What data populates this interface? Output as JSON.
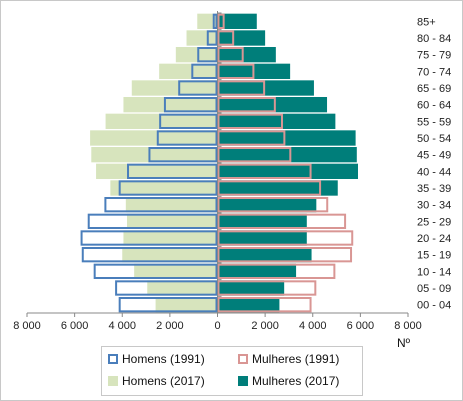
{
  "chart_data": {
    "type": "bar",
    "orientation": "horizontal-pyramid",
    "categories": [
      "00 - 04",
      "05 - 09",
      "10 - 14",
      "15 - 19",
      "20 - 24",
      "25 - 29",
      "30 - 34",
      "35 - 39",
      "40 - 44",
      "45 - 49",
      "50 - 54",
      "55 - 59",
      "60 - 64",
      "65 - 69",
      "70 - 74",
      "75 - 79",
      "80 - 84",
      "85+"
    ],
    "series": [
      {
        "name": "Homens (1991)",
        "side": "left",
        "style": "outline",
        "color": "#4a7ebb",
        "values": [
          4150,
          4300,
          5200,
          5700,
          5750,
          5450,
          4750,
          4150,
          3800,
          2900,
          2550,
          2450,
          2250,
          1650,
          1100,
          850,
          450,
          200
        ]
      },
      {
        "name": "Mulheres (1991)",
        "side": "right",
        "style": "outline",
        "color": "#d99694",
        "values": [
          3950,
          4150,
          4950,
          5650,
          5700,
          5400,
          4650,
          4350,
          3950,
          3100,
          2850,
          2750,
          2450,
          2000,
          1550,
          1100,
          700,
          300
        ]
      },
      {
        "name": "Homens (2017)",
        "side": "left",
        "style": "fill",
        "color": "#d7e4bd",
        "values": [
          2600,
          2950,
          3500,
          4000,
          3950,
          3800,
          3850,
          4500,
          5100,
          5300,
          5350,
          4700,
          3950,
          3600,
          2450,
          1750,
          1300,
          850
        ]
      },
      {
        "name": "Mulheres (2017)",
        "side": "right",
        "style": "fill",
        "color": "#007e7a",
        "values": [
          2600,
          2800,
          3300,
          3950,
          3750,
          3750,
          4150,
          5050,
          5900,
          5850,
          5800,
          4950,
          4600,
          4050,
          3050,
          2450,
          2000,
          1650
        ]
      }
    ],
    "xlim": [
      -8000,
      8000
    ],
    "xticks": [
      -8000,
      -6000,
      -4000,
      -2000,
      0,
      2000,
      4000,
      6000,
      8000
    ],
    "xtick_labels": [
      "8 000",
      "6 000",
      "4 000",
      "2 000",
      "0",
      "2 000",
      "4 000",
      "6 000",
      "8 000"
    ],
    "xlabel": "Nº",
    "legend_position": "bottom",
    "grid": false
  }
}
